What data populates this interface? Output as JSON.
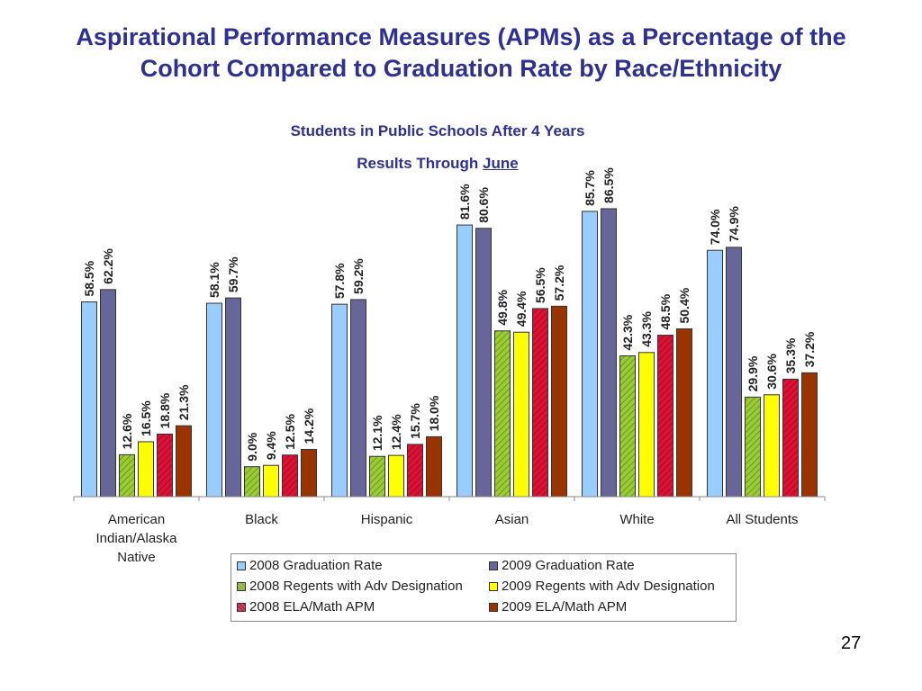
{
  "slide": {
    "title": "Aspirational Performance Measures (APMs) as a Percentage of the Cohort Compared to Graduation Rate by Race/Ethnicity",
    "page_number": "27"
  },
  "chart_data": {
    "type": "bar",
    "subtitle": "Students in Public Schools After 4 Years",
    "subtitle2_prefix": "Results Through ",
    "subtitle2_underlined": "June",
    "categories": [
      "American Indian/Alaska Native",
      "Black",
      "Hispanic",
      "Asian",
      "White",
      "All Students"
    ],
    "category_lines": [
      [
        "American",
        "Indian/Alaska",
        "Native"
      ],
      [
        "Black"
      ],
      [
        "Hispanic"
      ],
      [
        "Asian"
      ],
      [
        "White"
      ],
      [
        "All Students"
      ]
    ],
    "ylim": [
      0,
      100
    ],
    "grid": false,
    "series": [
      {
        "name": "2008 Graduation Rate",
        "color": "#99ccff",
        "pattern": "solid",
        "values": [
          58.5,
          58.1,
          57.8,
          81.6,
          85.7,
          74.0
        ],
        "labels": [
          "58.5%",
          "58.1%",
          "57.8%",
          "81.6%",
          "85.7%",
          "74.0%"
        ]
      },
      {
        "name": "2009 Graduation Rate",
        "color": "#666699",
        "pattern": "solid",
        "values": [
          62.2,
          59.7,
          59.2,
          80.6,
          86.5,
          74.9
        ],
        "labels": [
          "62.2%",
          "59.7%",
          "59.2%",
          "80.6%",
          "86.5%",
          "74.9%"
        ]
      },
      {
        "name": "2008 Regents with Adv Designation",
        "color": "#99cc33",
        "pattern": "diagonal",
        "values": [
          12.6,
          9.0,
          12.1,
          49.8,
          42.3,
          29.9
        ],
        "labels": [
          "12.6%",
          "9.0%",
          "12.1%",
          "49.8%",
          "42.3%",
          "29.9%"
        ]
      },
      {
        "name": "2009 Regents with Adv Designation",
        "color": "#ffff00",
        "pattern": "solid",
        "values": [
          16.5,
          9.4,
          12.4,
          49.4,
          43.3,
          30.6
        ],
        "labels": [
          "16.5%",
          "9.4%",
          "12.4%",
          "49.4%",
          "43.3%",
          "30.6%"
        ]
      },
      {
        "name": "2008 ELA/Math APM",
        "color": "#dd1133",
        "pattern": "diagonal",
        "values": [
          18.8,
          12.5,
          15.7,
          56.5,
          48.5,
          35.3
        ],
        "labels": [
          "18.8%",
          "12.5%",
          "15.7%",
          "56.5%",
          "48.5%",
          "35.3%"
        ]
      },
      {
        "name": "2009 ELA/Math APM",
        "color": "#993300",
        "pattern": "solid",
        "values": [
          21.3,
          14.2,
          18.0,
          57.2,
          50.4,
          37.2
        ],
        "labels": [
          "21.3%",
          "14.2%",
          "18.0%",
          "57.2%",
          "50.4%",
          "37.2%"
        ]
      }
    ],
    "legend_order": [
      0,
      1,
      2,
      3,
      4,
      5
    ]
  }
}
